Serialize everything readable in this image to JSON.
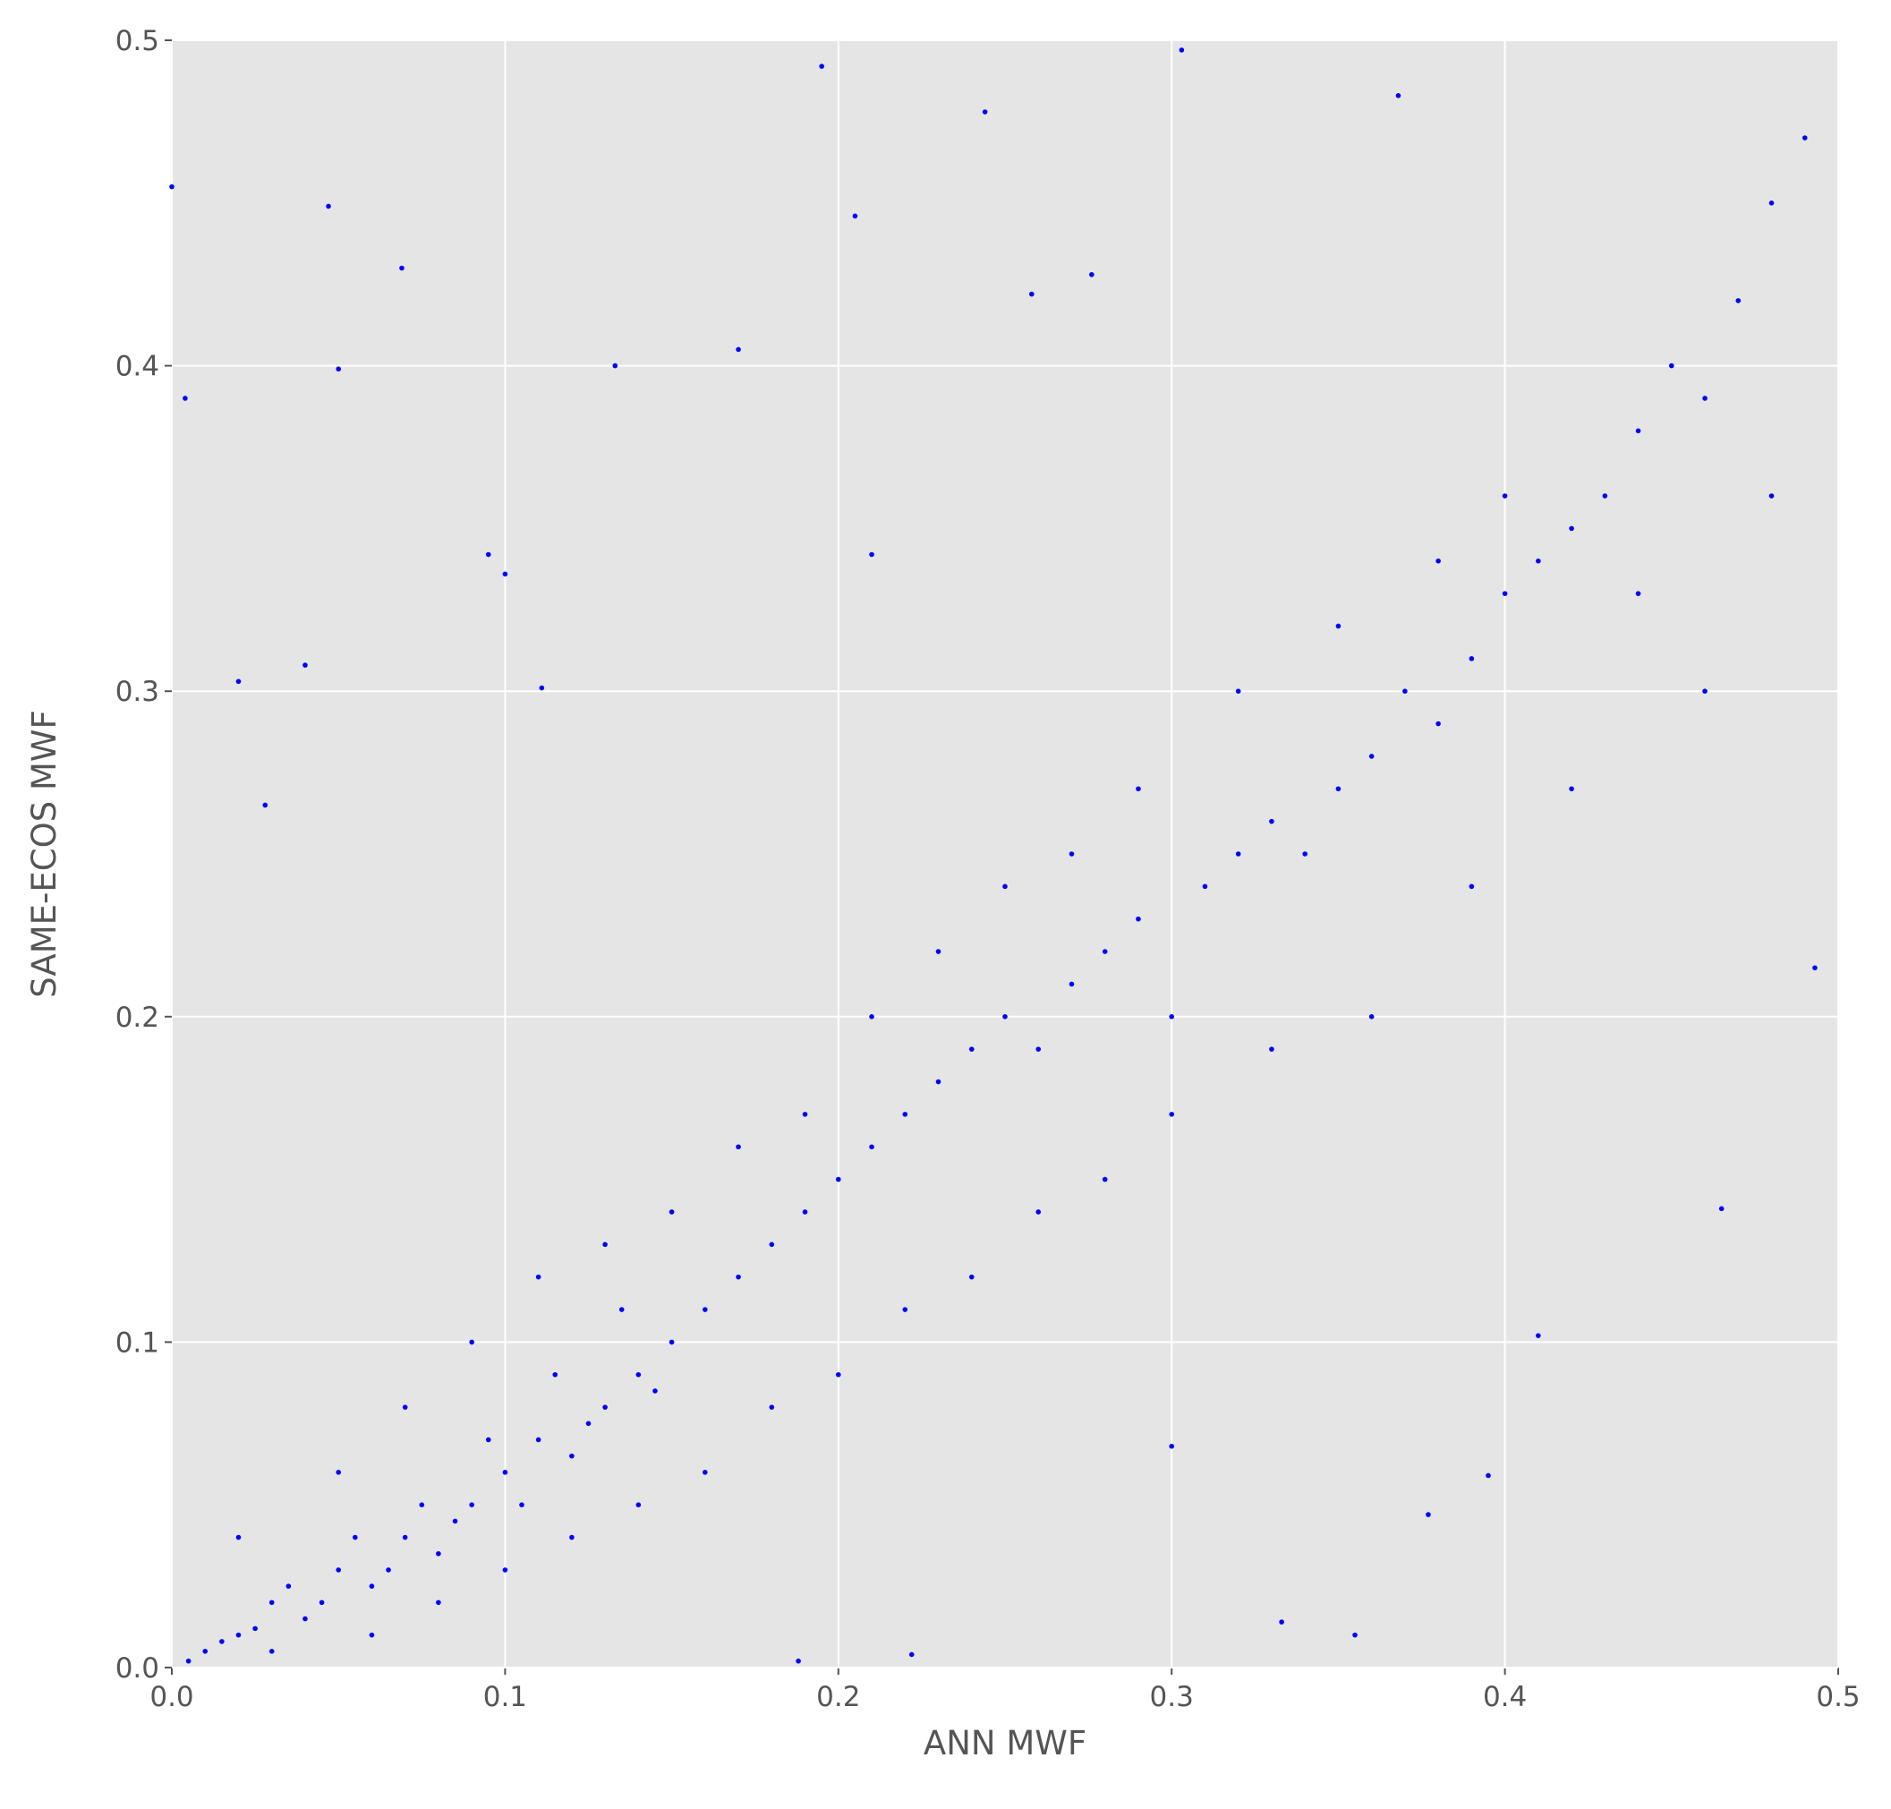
{
  "chart_data": {
    "type": "scatter",
    "x_label": "ANN MWF",
    "y_label": "SAME-ECOS MWF",
    "color": "#0000ff",
    "background": "#e5e5e5",
    "grid": true,
    "xlim": [
      0,
      0.5
    ],
    "ylim": [
      0,
      0.5
    ],
    "xticks": [
      {
        "value": 0,
        "label": "0.0"
      },
      0.1,
      0.2,
      0.3,
      0.4,
      0.5
    ],
    "yticks": [
      {
        "value": 0,
        "label": "0.0"
      },
      0.1,
      0.2,
      0.3,
      0.4,
      0.5
    ],
    "x": [
      0.01,
      0.02,
      0.03,
      0.04,
      0.05,
      0.06,
      0.07,
      0.08,
      0.09,
      0.1,
      0.11,
      0.12,
      0.13,
      0.14,
      0.15,
      0.16,
      0.17,
      0.18,
      0.19,
      0.2,
      0.21,
      0.22,
      0.23,
      0.24,
      0.25,
      0.26,
      0.27,
      0.28,
      0.29,
      0.3,
      0.31,
      0.32,
      0.33,
      0.34,
      0.35,
      0.36,
      0.37,
      0.38,
      0.39,
      0.4,
      0.41,
      0.42,
      0.43,
      0.44,
      0.45,
      0.46,
      0.47,
      0.48,
      0.49,
      0.02,
      0.03,
      0.05,
      0.06,
      0.07,
      0.08,
      0.09,
      0.1,
      0.11,
      0.12,
      0.13,
      0.14,
      0.15,
      0.16,
      0.17,
      0.18,
      0.19,
      0.2,
      0.21,
      0.22,
      0.23,
      0.24,
      0.25,
      0.26,
      0.27,
      0.28,
      0.29,
      0.3,
      0.32,
      0.33,
      0.35,
      0.36,
      0.38,
      0.39,
      0.4,
      0.42,
      0.44,
      0.46,
      0.48,
      0.005,
      0.015,
      0.025,
      0.035,
      0.045,
      0.055,
      0.065,
      0.075,
      0.085,
      0.095,
      0.105,
      0.115,
      0.125,
      0.135,
      0.145,
      0.0,
      0.004,
      0.047,
      0.069,
      0.05,
      0.133,
      0.17,
      0.195,
      0.244,
      0.205,
      0.303,
      0.368,
      0.095,
      0.1,
      0.04,
      0.02,
      0.111,
      0.028,
      0.395,
      0.41,
      0.465,
      0.377,
      0.355,
      0.222,
      0.188,
      0.333,
      0.493,
      0.21,
      0.258,
      0.276,
      0.3
    ],
    "values": [
      0.005,
      0.01,
      0.02,
      0.015,
      0.03,
      0.025,
      0.04,
      0.035,
      0.05,
      0.06,
      0.07,
      0.065,
      0.08,
      0.09,
      0.1,
      0.11,
      0.12,
      0.13,
      0.14,
      0.15,
      0.16,
      0.17,
      0.18,
      0.19,
      0.2,
      0.19,
      0.21,
      0.22,
      0.23,
      0.2,
      0.24,
      0.25,
      0.26,
      0.25,
      0.27,
      0.28,
      0.3,
      0.29,
      0.31,
      0.33,
      0.34,
      0.35,
      0.36,
      0.38,
      0.4,
      0.39,
      0.42,
      0.45,
      0.47,
      0.04,
      0.005,
      0.06,
      0.01,
      0.08,
      0.02,
      0.1,
      0.03,
      0.12,
      0.04,
      0.13,
      0.05,
      0.14,
      0.06,
      0.16,
      0.08,
      0.17,
      0.09,
      0.2,
      0.11,
      0.22,
      0.12,
      0.24,
      0.14,
      0.25,
      0.15,
      0.27,
      0.17,
      0.3,
      0.19,
      0.32,
      0.2,
      0.34,
      0.24,
      0.36,
      0.27,
      0.33,
      0.3,
      0.36,
      0.002,
      0.008,
      0.012,
      0.025,
      0.02,
      0.04,
      0.03,
      0.05,
      0.045,
      0.07,
      0.05,
      0.09,
      0.075,
      0.11,
      0.085,
      0.455,
      0.39,
      0.449,
      0.43,
      0.399,
      0.4,
      0.405,
      0.492,
      0.478,
      0.446,
      0.497,
      0.483,
      0.342,
      0.336,
      0.308,
      0.303,
      0.301,
      0.265,
      0.059,
      0.102,
      0.141,
      0.047,
      0.01,
      0.004,
      0.002,
      0.014,
      0.215,
      0.342,
      0.422,
      0.428,
      0.068
    ]
  }
}
